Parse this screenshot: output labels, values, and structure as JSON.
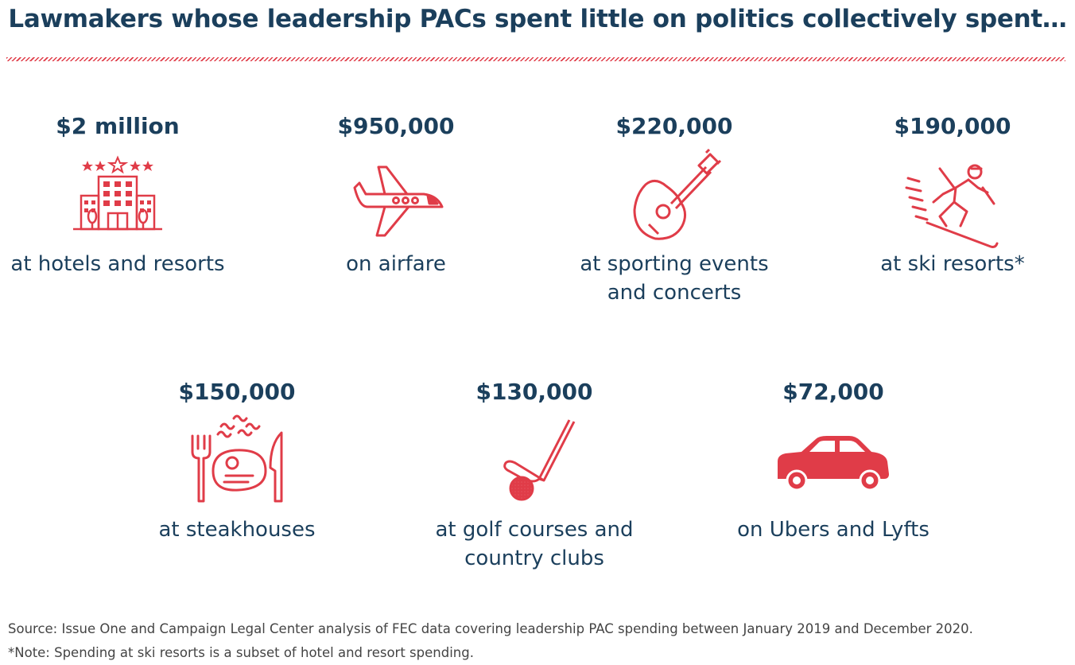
{
  "title": "Lawmakers whose leadership PACs spent little on politics collectively spent…",
  "colors": {
    "accent": "#e03c48",
    "text": "#1b3f5c"
  },
  "items": [
    {
      "amount": "$2 million",
      "line1": "at hotels and resorts",
      "line2": "",
      "icon": "hotel-icon"
    },
    {
      "amount": "$950,000",
      "line1": "on airfare",
      "line2": "",
      "icon": "airplane-icon"
    },
    {
      "amount": "$220,000",
      "line1": "at sporting events",
      "line2": "and concerts",
      "icon": "guitar-icon"
    },
    {
      "amount": "$190,000",
      "line1": "at ski resorts*",
      "line2": "",
      "icon": "skier-icon"
    },
    {
      "amount": "$150,000",
      "line1": "at steakhouses",
      "line2": "",
      "icon": "steak-icon"
    },
    {
      "amount": "$130,000",
      "line1": "at golf courses and",
      "line2": "country clubs",
      "icon": "golf-icon"
    },
    {
      "amount": "$72,000",
      "line1": "on Ubers and Lyfts",
      "line2": "",
      "icon": "car-icon"
    }
  ],
  "source": "Source: Issue One and Campaign Legal Center analysis of FEC data covering leadership PAC spending between January 2019 and December 2020.",
  "note": "*Note: Spending at ski resorts is a subset of hotel and resort spending."
}
